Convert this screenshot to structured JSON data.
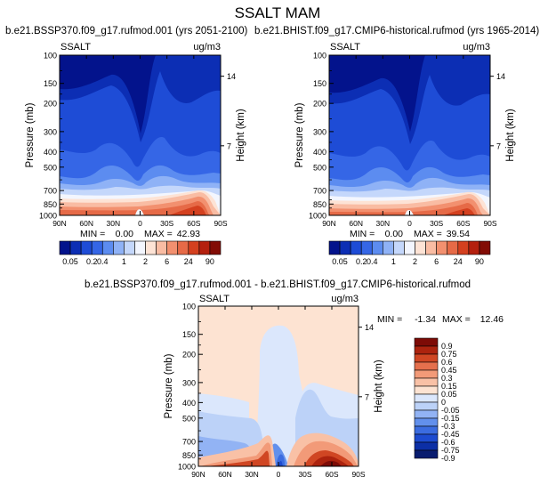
{
  "title": "SSALT MAM",
  "palette_abs": [
    "#03138c",
    "#0c2eb4",
    "#1e4cd6",
    "#3566e6",
    "#5c8cf0",
    "#8fb2f6",
    "#c4d7fb",
    "#f3f6fe",
    "#fde3d5",
    "#f9bca3",
    "#f2906f",
    "#e66a47",
    "#d4401f",
    "#b4200e",
    "#820c05"
  ],
  "palette_diff": [
    "#081c6f",
    "#0c2fa6",
    "#1d4bd0",
    "#3b6ce0",
    "#6290ec",
    "#92b3f4",
    "#bcd2f8",
    "#dbe7fc",
    "#fde3d2",
    "#f9c1a6",
    "#f29a78",
    "#e5704d",
    "#d04623",
    "#ac230e",
    "#7d0b06"
  ],
  "charts": [
    {
      "id": "future",
      "title": "b.e21.BSSP370.f09_g17.rufmod.001 (yrs 2051-2100)",
      "variable": "SSALT",
      "units": "ug/m3",
      "stats": {
        "min_label": "MIN =",
        "min": "0.00",
        "max_label": "MAX =",
        "max": "42.93"
      }
    },
    {
      "id": "historical",
      "title": "b.e21.BHIST.f09_g17.CMIP6-historical.rufmod (yrs 1965-2014)",
      "variable": "SSALT",
      "units": "ug/m3",
      "stats": {
        "min_label": "MIN =",
        "min": "0.00",
        "max_label": "MAX =",
        "max": "39.54"
      }
    },
    {
      "id": "difference",
      "title": "b.e21.BSSP370.f09_g17.rufmod.001 - b.e21.BHIST.f09_g17.CMIP6-historical.rufmod",
      "variable": "SSALT",
      "units": "ug/m3",
      "stats": {
        "min_label": "MIN =",
        "min": "-1.34",
        "max_label": "MAX =",
        "max": "12.46"
      }
    }
  ],
  "chart_data": [
    {
      "type": "heatmap",
      "title": "b.e21.BSSP370.f09_g17.rufmod.001 (yrs 2051-2100)",
      "xlabel": "",
      "ylabel": "Pressure (mb)",
      "y2label": "Height (km)",
      "xticks": [
        "90N",
        "60N",
        "30N",
        "0",
        "30S",
        "60S",
        "90S"
      ],
      "xrange": [
        90,
        -90
      ],
      "yticks": [
        100,
        150,
        200,
        300,
        400,
        500,
        700,
        850,
        1000
      ],
      "yrange": [
        100,
        1000
      ],
      "y2ticks": [
        14,
        7
      ],
      "min": 0.0,
      "max": 42.93,
      "levels": [
        0.05,
        0.1,
        0.2,
        0.4,
        0.6,
        1,
        1.5,
        2,
        4,
        6,
        12,
        24,
        48,
        90
      ]
    },
    {
      "type": "heatmap",
      "title": "b.e21.BHIST.f09_g17.CMIP6-historical.rufmod (yrs 1965-2014)",
      "xlabel": "",
      "ylabel": "Pressure (mb)",
      "y2label": "Height (km)",
      "xticks": [
        "90N",
        "60N",
        "30N",
        "0",
        "30S",
        "60S",
        "90S"
      ],
      "xrange": [
        90,
        -90
      ],
      "yticks": [
        100,
        150,
        200,
        300,
        400,
        500,
        700,
        850,
        1000
      ],
      "yrange": [
        100,
        1000
      ],
      "y2ticks": [
        14,
        7
      ],
      "min": 0.0,
      "max": 39.54,
      "levels": [
        0.05,
        0.1,
        0.2,
        0.4,
        0.6,
        1,
        1.5,
        2,
        4,
        6,
        12,
        24,
        48,
        90
      ]
    },
    {
      "type": "heatmap",
      "title": "b.e21.BSSP370.f09_g17.rufmod.001 - b.e21.BHIST.f09_g17.CMIP6-historical.rufmod",
      "xlabel": "",
      "ylabel": "Pressure (mb)",
      "y2label": "Height (km)",
      "xticks": [
        "90N",
        "60N",
        "30N",
        "0",
        "30S",
        "60S",
        "90S"
      ],
      "xrange": [
        90,
        -90
      ],
      "yticks": [
        100,
        150,
        200,
        300,
        400,
        500,
        700,
        850,
        1000
      ],
      "yrange": [
        100,
        1000
      ],
      "y2ticks": [
        14,
        7
      ],
      "min": -1.34,
      "max": 12.46,
      "levels": [
        -0.9,
        -0.75,
        -0.6,
        -0.45,
        -0.3,
        -0.15,
        -0.05,
        0,
        0.05,
        0.15,
        0.3,
        0.45,
        0.6,
        0.75,
        0.9
      ]
    }
  ],
  "colorbar_abs": {
    "labels": [
      "0.05",
      "0.2",
      "0.4",
      "1",
      "2",
      "6",
      "24",
      "90"
    ],
    "label_boundaries": [
      0,
      2,
      3,
      5,
      7,
      9,
      11,
      13
    ]
  },
  "colorbar_diff": {
    "labels": [
      "-0.9",
      "-0.75",
      "-0.6",
      "-0.45",
      "-0.3",
      "-0.15",
      "-0.05",
      "0",
      "0.05",
      "0.15",
      "0.3",
      "0.45",
      "0.6",
      "0.75",
      "0.9"
    ]
  }
}
